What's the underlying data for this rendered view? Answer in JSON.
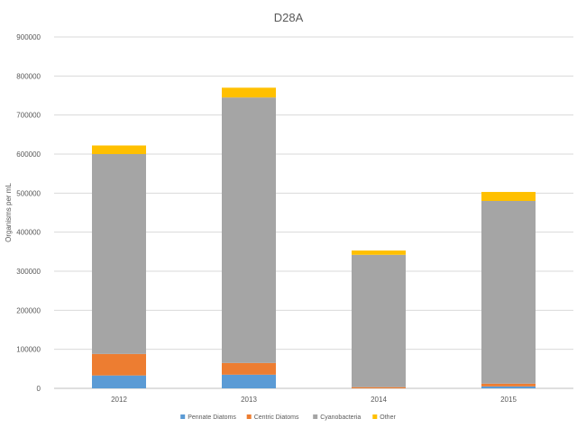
{
  "chart_data": {
    "type": "bar",
    "stacked": true,
    "title": "D28A",
    "xlabel": "",
    "ylabel": "Organisms per mL",
    "categories": [
      "2012",
      "2013",
      "2014",
      "2015"
    ],
    "ylim": [
      0,
      900000
    ],
    "yticks": [
      0,
      100000,
      200000,
      300000,
      400000,
      500000,
      600000,
      700000,
      800000,
      900000
    ],
    "grid": true,
    "legend_position": "bottom",
    "series": [
      {
        "name": "Pennate Diatoms",
        "color": "#5B9BD5",
        "values": [
          33000,
          35000,
          0,
          5000
        ]
      },
      {
        "name": "Centric Diatoms",
        "color": "#ED7D31",
        "values": [
          55000,
          30000,
          3000,
          7000
        ]
      },
      {
        "name": "Cyanobacteria",
        "color": "#A5A5A5",
        "values": [
          512000,
          680000,
          339000,
          468000
        ]
      },
      {
        "name": "Other",
        "color": "#FFC000",
        "values": [
          22000,
          25000,
          11000,
          23000
        ]
      }
    ]
  }
}
